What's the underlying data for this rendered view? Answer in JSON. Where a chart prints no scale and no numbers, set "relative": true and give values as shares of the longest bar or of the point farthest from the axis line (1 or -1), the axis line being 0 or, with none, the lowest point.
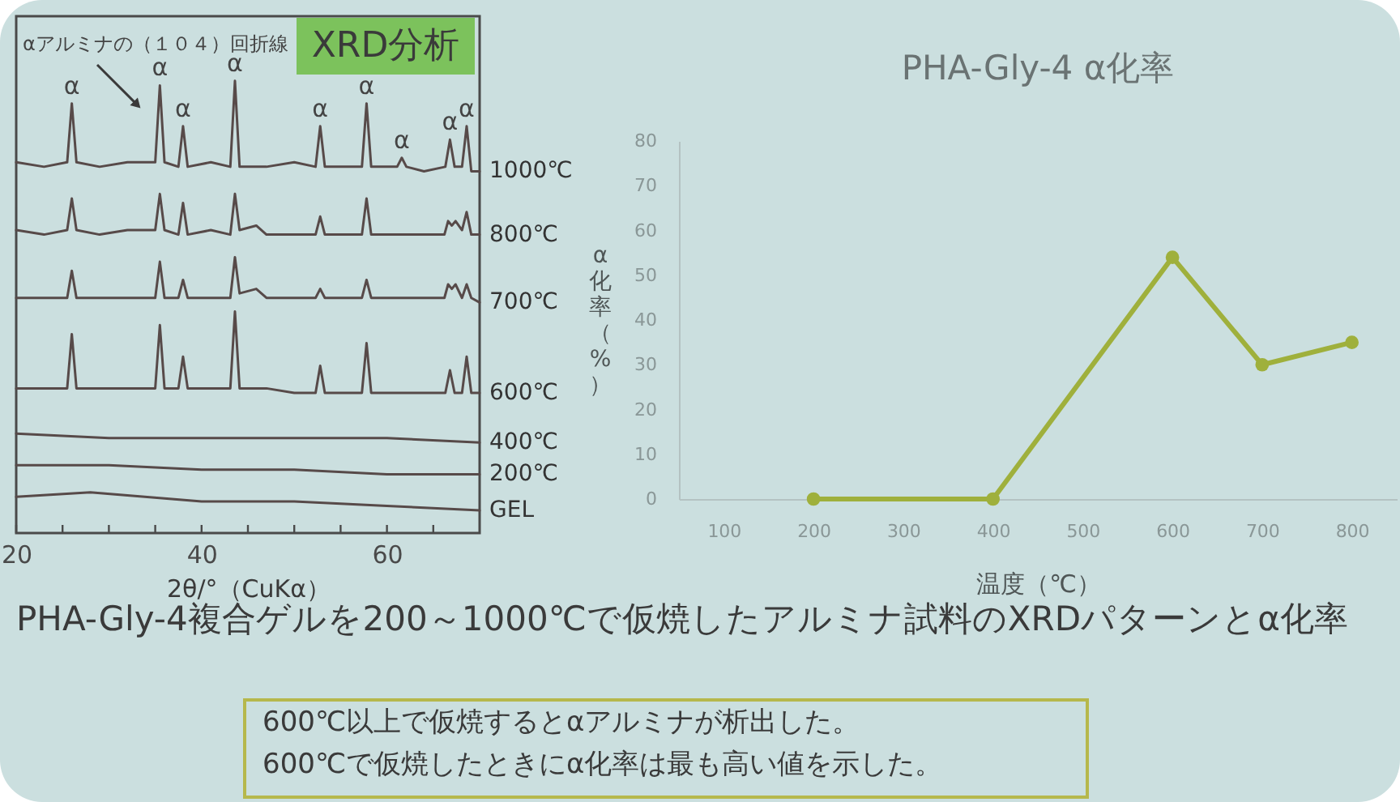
{
  "chart_data": [
    {
      "type": "line",
      "relative": true,
      "xlabel": "2θ/°（CuKα）",
      "xlim": [
        20,
        70
      ],
      "xticks": [
        20,
        {
          "value": 25,
          "label": null
        },
        {
          "value": 30,
          "label": null
        },
        {
          "value": 35,
          "label": null
        },
        40,
        {
          "value": 45,
          "label": null
        },
        {
          "value": 50,
          "label": null
        },
        {
          "value": 55,
          "label": null
        },
        60,
        {
          "value": 65,
          "label": null
        }
      ],
      "series": [
        {
          "name": "1000℃",
          "color": "#574a49",
          "x": [
            20,
            23,
            25.5,
            26,
            26.5,
            29,
            32,
            35,
            35.5,
            36,
            37.5,
            38,
            38.5,
            41,
            43.1,
            43.6,
            44.1,
            47,
            50,
            52.3,
            52.8,
            53.3,
            55,
            57.3,
            57.8,
            58.3,
            60,
            61.1,
            61.6,
            62.1,
            64,
            66.3,
            66.8,
            67.3,
            68.1,
            68.6,
            69.1,
            70
          ],
          "values": [
            0.82,
            0.81,
            0.82,
            0.95,
            0.82,
            0.81,
            0.82,
            0.82,
            0.99,
            0.82,
            0.81,
            0.9,
            0.81,
            0.82,
            0.81,
            1,
            0.81,
            0.81,
            0.82,
            0.81,
            0.9,
            0.81,
            0.81,
            0.81,
            0.95,
            0.81,
            0.81,
            0.81,
            0.83,
            0.81,
            0.8,
            0.81,
            0.87,
            0.81,
            0.81,
            0.9,
            0.8,
            0.8
          ]
        },
        {
          "name": "800℃",
          "color": "#574a49",
          "x": [
            20,
            23,
            25.5,
            26,
            26.5,
            29,
            32,
            35,
            35.5,
            36,
            37.5,
            38,
            38.5,
            41,
            43.1,
            43.6,
            44.1,
            45.9,
            47,
            50,
            52.3,
            52.8,
            53.3,
            55,
            57.3,
            57.8,
            58.3,
            60,
            63,
            66.2,
            66.6,
            67,
            67.4,
            68.1,
            68.6,
            69.1,
            70
          ],
          "values": [
            0.67,
            0.66,
            0.67,
            0.74,
            0.67,
            0.66,
            0.67,
            0.67,
            0.75,
            0.67,
            0.66,
            0.73,
            0.66,
            0.67,
            0.66,
            0.75,
            0.67,
            0.68,
            0.66,
            0.66,
            0.66,
            0.7,
            0.66,
            0.66,
            0.66,
            0.74,
            0.66,
            0.66,
            0.66,
            0.66,
            0.69,
            0.68,
            0.69,
            0.67,
            0.71,
            0.66,
            0.66
          ]
        },
        {
          "name": "700℃",
          "color": "#574a49",
          "x": [
            20,
            23,
            25.5,
            26,
            26.5,
            29,
            32,
            35,
            35.5,
            36,
            37.5,
            38,
            38.5,
            41,
            43.1,
            43.6,
            44.1,
            45.9,
            47,
            50,
            52.3,
            52.8,
            53.3,
            55,
            57.3,
            57.8,
            58.3,
            60,
            63,
            66.2,
            66.6,
            67,
            67.4,
            68.1,
            68.6,
            69.1,
            70
          ],
          "values": [
            0.52,
            0.52,
            0.52,
            0.58,
            0.52,
            0.52,
            0.52,
            0.52,
            0.6,
            0.52,
            0.52,
            0.56,
            0.52,
            0.52,
            0.52,
            0.61,
            0.53,
            0.54,
            0.52,
            0.52,
            0.52,
            0.54,
            0.52,
            0.52,
            0.52,
            0.56,
            0.52,
            0.52,
            0.52,
            0.52,
            0.55,
            0.54,
            0.55,
            0.52,
            0.55,
            0.52,
            0.51
          ]
        },
        {
          "name": "600℃",
          "color": "#574a49",
          "x": [
            20,
            23,
            25.5,
            26,
            26.5,
            29,
            32,
            35,
            35.5,
            36,
            37.5,
            38,
            38.5,
            41,
            43.1,
            43.6,
            44.1,
            47,
            50,
            52.3,
            52.8,
            53.3,
            55,
            57.3,
            57.8,
            58.3,
            60,
            63,
            66.3,
            66.8,
            67.3,
            68.1,
            68.6,
            69.1,
            70
          ],
          "values": [
            0.32,
            0.32,
            0.32,
            0.44,
            0.32,
            0.32,
            0.32,
            0.32,
            0.46,
            0.32,
            0.32,
            0.39,
            0.32,
            0.32,
            0.32,
            0.49,
            0.32,
            0.32,
            0.31,
            0.31,
            0.37,
            0.31,
            0.31,
            0.31,
            0.42,
            0.31,
            0.31,
            0.31,
            0.31,
            0.36,
            0.31,
            0.31,
            0.39,
            0.31,
            0.31
          ]
        },
        {
          "name": "400℃",
          "color": "#574a49",
          "x": [
            20,
            30,
            40,
            50,
            60,
            70
          ],
          "values": [
            0.22,
            0.21,
            0.21,
            0.21,
            0.21,
            0.2
          ]
        },
        {
          "name": "200℃",
          "color": "#574a49",
          "x": [
            20,
            30,
            40,
            50,
            60,
            70
          ],
          "values": [
            0.15,
            0.15,
            0.14,
            0.14,
            0.13,
            0.13
          ]
        },
        {
          "name": "GEL",
          "color": "#574a49",
          "x": [
            20,
            28,
            40,
            50,
            60,
            70
          ],
          "values": [
            0.08,
            0.09,
            0.07,
            0.07,
            0.06,
            0.05
          ]
        }
      ],
      "annotations": [
        {
          "text": "αアルミナの（１０４）回折線",
          "x": 35.5,
          "y": 0.99
        },
        "XRD分析",
        {
          "text": "α",
          "x": 26,
          "y": 0.95
        },
        {
          "text": "α",
          "x": 35.5,
          "y": 0.99
        },
        {
          "text": "α",
          "x": 38,
          "y": 0.9
        },
        {
          "text": "α",
          "x": 43.6,
          "y": 1
        },
        {
          "text": "α",
          "x": 52.8,
          "y": 0.9
        },
        {
          "text": "α",
          "x": 57.8,
          "y": 0.95
        },
        {
          "text": "α",
          "x": 61.6,
          "y": 0.83
        },
        {
          "text": "α",
          "x": 66.8,
          "y": 0.87
        },
        {
          "text": "α",
          "x": 68.6,
          "y": 0.9
        }
      ]
    },
    {
      "type": "line",
      "title": "PHA-Gly-4 α化率",
      "xlabel": "温度（℃）",
      "ylabel": "α化率（%）",
      "x": [
        200,
        400,
        600,
        700,
        800
      ],
      "values": [
        0,
        0,
        54,
        30,
        35
      ],
      "color": "#9fb03c",
      "marker": "circle",
      "xlim": [
        50,
        850
      ],
      "xticks": [
        100,
        200,
        300,
        400,
        500,
        600,
        700,
        800
      ],
      "ylim": [
        0,
        80
      ],
      "yticks": [
        0,
        10,
        20,
        30,
        40,
        50,
        60,
        70,
        80
      ],
      "annotations": [
        "PHA-Gly-4複合ゲルを200～1000℃で仮焼したアルミナ試料のXRDパターンとα化率",
        "600℃以上で仮焼するとαアルミナが析出した。",
        "600℃で仮焼したときにα化率は最も高い値を示した。"
      ]
    }
  ]
}
